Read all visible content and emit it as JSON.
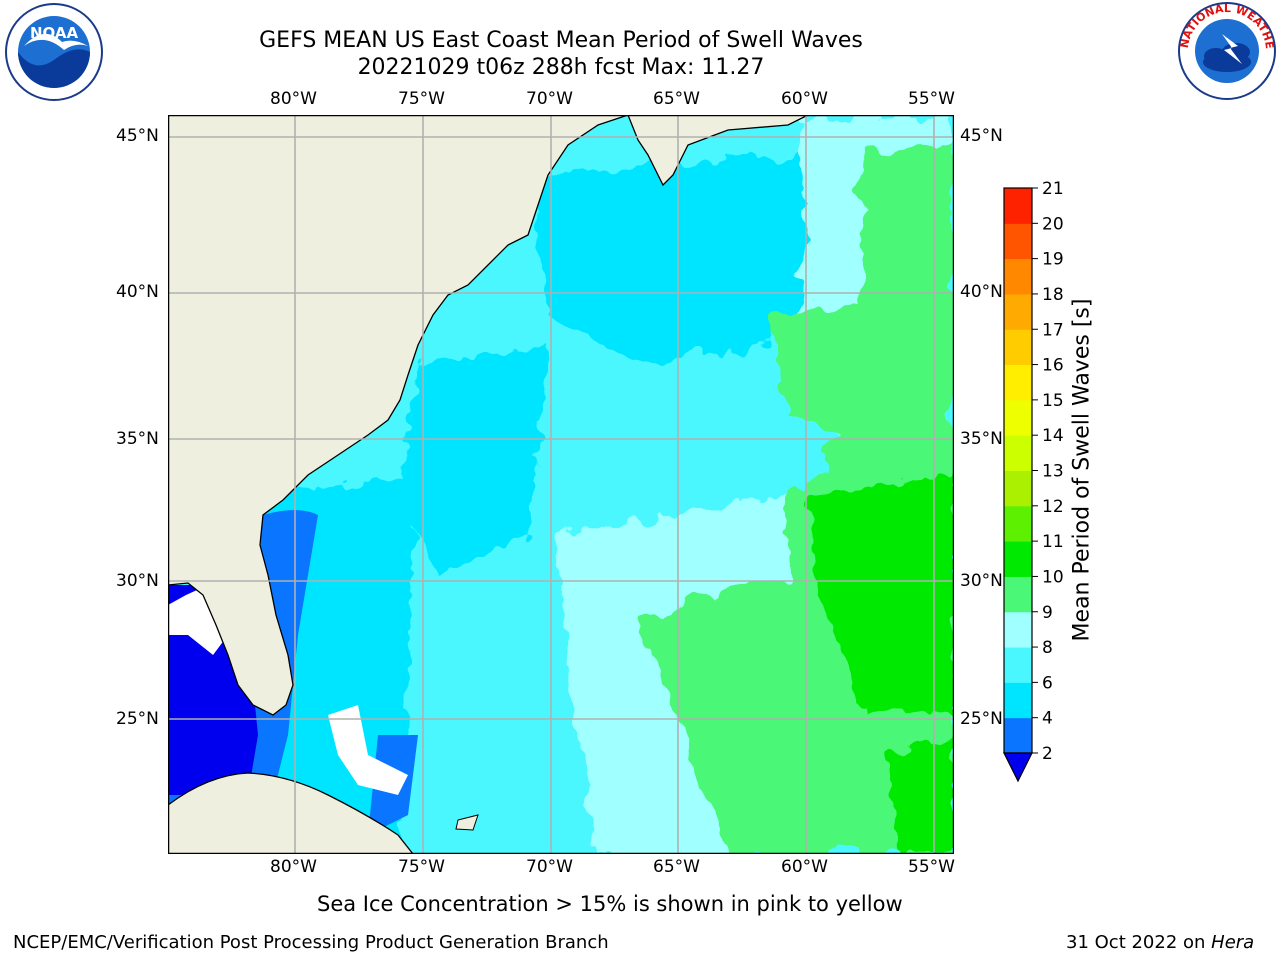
{
  "header": {
    "title_line1": "GEFS MEAN US East Coast Mean Period of Swell Waves",
    "title_line2": "20221029 t06z 288h fcst   Max: 11.27"
  },
  "logos": {
    "left": {
      "icon": "noaa-logo-icon",
      "text": "NOAA",
      "ring_text": "NATIONAL OCEANIC AND ATMOSPHERIC ADMINISTRATION · U.S. DEPARTMENT OF COMMERCE"
    },
    "right": {
      "icon": "nws-logo-icon",
      "ring_text": "NATIONAL WEATHER SERVICE"
    }
  },
  "map": {
    "lon_labels": [
      "80°W",
      "75°W",
      "70°W",
      "65°W",
      "60°W",
      "55°W"
    ],
    "lat_labels": [
      "45°N",
      "40°N",
      "35°N",
      "30°N",
      "25°N"
    ],
    "lon_range": [
      -85,
      -55
    ],
    "lat_range": [
      20,
      46
    ],
    "land_color": "#efefdf",
    "grid_color": "#b0b0b0"
  },
  "colorbar": {
    "title": "Mean Period of Swell Waves [s]",
    "ticks": [
      "2",
      "4",
      "6",
      "8",
      "9",
      "10",
      "11",
      "12",
      "13",
      "14",
      "15",
      "16",
      "17",
      "18",
      "19",
      "20",
      "21"
    ],
    "colors": [
      "#0a75ff",
      "#00e5ff",
      "#4bf7ff",
      "#a0ffff",
      "#4bf777",
      "#00e900",
      "#5df000",
      "#aaf000",
      "#ccff00",
      "#eeff00",
      "#ffee00",
      "#ffcc00",
      "#ffaa00",
      "#ff8800",
      "#ff5500",
      "#ff2200"
    ],
    "under_color": "#0000ee"
  },
  "footer": {
    "note": "Sea Ice Concentration > 15% is shown in pink to yellow",
    "credit": "NCEP/EMC/Verification Post Processing Product Generation Branch",
    "date": "31 Oct 2022 on ",
    "machine": "Hera"
  }
}
